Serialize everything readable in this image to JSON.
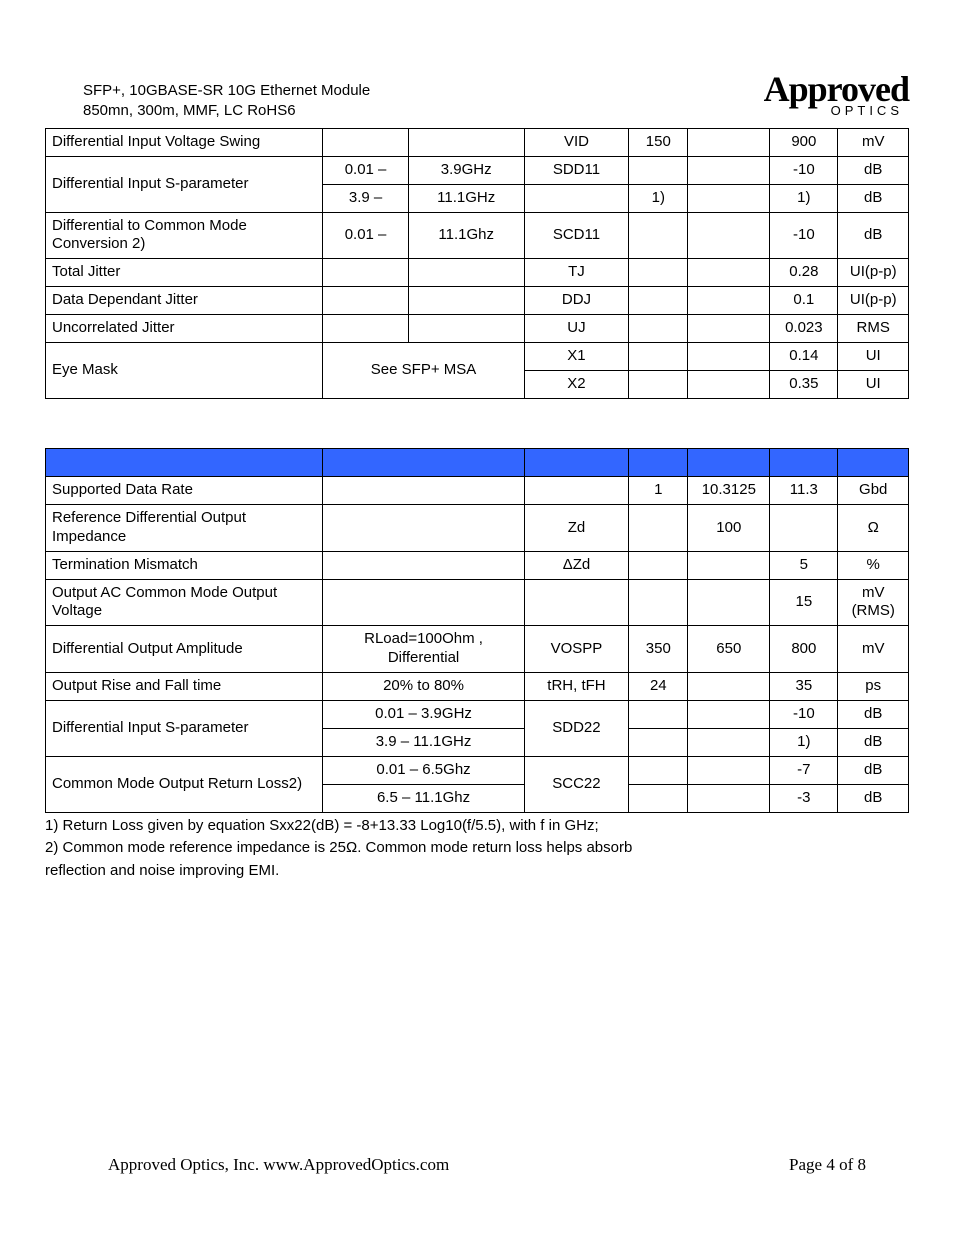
{
  "header": {
    "line1": "SFP+, 10GBASE-SR 10G Ethernet Module",
    "line2": "850mn, 300m, MMF, LC RoHS6",
    "logo_main": "Approved",
    "logo_sub": "OPTICS"
  },
  "table1_rows": [
    {
      "param": "Differential Input Voltage Swing",
      "c1": "",
      "c2": "",
      "sym": "VID",
      "min": "150",
      "typ": "",
      "max": "900",
      "unit": "mV",
      "rowspan_param": 1,
      "rowspan_c": 1
    },
    {
      "param": "Differential Input S-parameter",
      "c1": "0.01 –",
      "c2": "3.9GHz",
      "sym": "SDD11",
      "min": "",
      "typ": "",
      "max": "-10",
      "unit": "dB",
      "rowspan_param": 2
    },
    {
      "c1": "3.9 –",
      "c2": "11.1GHz",
      "sym": "",
      "min": "1)",
      "typ": "",
      "max": "1)",
      "unit": "dB"
    },
    {
      "param": "Differential to Common Mode Conversion 2)",
      "c1": "0.01 –",
      "c2": "11.1Ghz",
      "sym": "SCD11",
      "min": "",
      "typ": "",
      "max": "-10",
      "unit": "dB"
    },
    {
      "param": "Total Jitter",
      "c1": "",
      "c2": "",
      "sym": "TJ",
      "min": "",
      "typ": "",
      "max": "0.28",
      "unit": "UI(p-p)"
    },
    {
      "param": "Data Dependant Jitter",
      "c1": "",
      "c2": "",
      "sym": "DDJ",
      "min": "",
      "typ": "",
      "max": "0.1",
      "unit": "UI(p-p)"
    },
    {
      "param": "Uncorrelated Jitter",
      "c1": "",
      "c2": "",
      "sym": "UJ",
      "min": "",
      "typ": "",
      "max": "0.023",
      "unit": "RMS"
    },
    {
      "param": "Eye Mask",
      "c_merged": "See SFP+ MSA",
      "sym": "X1",
      "min": "",
      "typ": "",
      "max": "0.14",
      "unit": "UI",
      "rowspan_param": 2,
      "rowspan_cmerged": 2
    },
    {
      "sym": "X2",
      "min": "",
      "typ": "",
      "max": "0.35",
      "unit": "UI"
    }
  ],
  "table2_rows": [
    {
      "param": "Supported Data Rate",
      "cond": "",
      "sym": "",
      "min": "1",
      "typ": "10.3125",
      "max": "11.3",
      "unit": "Gbd"
    },
    {
      "param": "Reference Differential Output Impedance",
      "cond": "",
      "sym": "Zd",
      "min": "",
      "typ": "100",
      "max": "",
      "unit": "Ω"
    },
    {
      "param": "Termination Mismatch",
      "cond": "",
      "sym": "ΔZd",
      "min": "",
      "typ": "",
      "max": "5",
      "unit": "%"
    },
    {
      "param": "Output AC Common Mode Output Voltage",
      "cond": "",
      "sym": "",
      "min": "",
      "typ": "",
      "max": "15",
      "unit": "mV (RMS)"
    },
    {
      "param": "Differential Output Amplitude",
      "cond": "RLoad=100Ohm , Differential",
      "sym": "VOSPP",
      "min": "350",
      "typ": "650",
      "max": "800",
      "unit": "mV"
    },
    {
      "param": "Output Rise and Fall time",
      "cond": "20% to 80%",
      "sym": "tRH, tFH",
      "min": "24",
      "typ": "",
      "max": "35",
      "unit": "ps"
    },
    {
      "param": "Differential Input S-parameter",
      "cond": "0.01 – 3.9GHz",
      "sym": "SDD22",
      "min": "",
      "typ": "",
      "max": "-10",
      "unit": "dB",
      "rowspan_param": 2,
      "rowspan_sym": 2
    },
    {
      "cond": "3.9 – 11.1GHz",
      "min": "",
      "typ": "",
      "max": "1)",
      "unit": "dB"
    },
    {
      "param": "Common Mode Output Return Loss2)",
      "cond": "0.01 – 6.5Ghz",
      "sym": "SCC22",
      "min": "",
      "typ": "",
      "max": "-7",
      "unit": "dB",
      "rowspan_param": 2,
      "rowspan_sym": 2
    },
    {
      "cond": "6.5 – 11.1Ghz",
      "min": "",
      "typ": "",
      "max": "-3",
      "unit": "dB"
    }
  ],
  "notes": {
    "n1": "1) Return Loss given by equation Sxx22(dB) = -8+13.33 Log10(f/5.5), with f in GHz;",
    "n2": "2) Common mode reference impedance is 25Ω. Common mode return loss helps absorb",
    "n3": "reflection and noise improving EMI."
  },
  "footer": {
    "left": "Approved Optics, Inc.  www.ApprovedOptics.com",
    "right": "Page 4 of 8"
  },
  "colors": {
    "header_bg": "#3366ff",
    "border": "#000000",
    "text": "#000000",
    "page_bg": "#ffffff"
  }
}
